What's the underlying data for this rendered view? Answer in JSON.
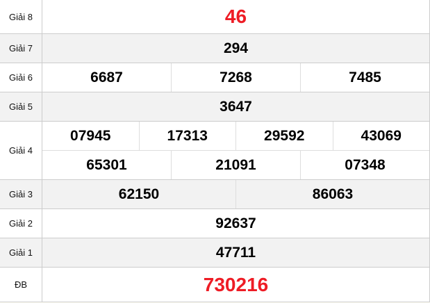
{
  "colors": {
    "special": "#ee1c25",
    "alt_row": "#f2f2f2"
  },
  "prizes": [
    {
      "label": "Giải 8",
      "rows": [
        [
          "46"
        ]
      ]
    },
    {
      "label": "Giải 7",
      "rows": [
        [
          "294"
        ]
      ]
    },
    {
      "label": "Giải 6",
      "rows": [
        [
          "6687",
          "7268",
          "7485"
        ]
      ]
    },
    {
      "label": "Giải 5",
      "rows": [
        [
          "3647"
        ]
      ]
    },
    {
      "label": "Giải 4",
      "rows": [
        [
          "07945",
          "17313",
          "29592",
          "43069"
        ],
        [
          "65301",
          "21091",
          "07348"
        ]
      ]
    },
    {
      "label": "Giải 3",
      "rows": [
        [
          "62150",
          "86063"
        ]
      ]
    },
    {
      "label": "Giải 2",
      "rows": [
        [
          "92637"
        ]
      ]
    },
    {
      "label": "Giải 1",
      "rows": [
        [
          "47711"
        ]
      ]
    },
    {
      "label": "ĐB",
      "rows": [
        [
          "730216"
        ]
      ]
    }
  ]
}
